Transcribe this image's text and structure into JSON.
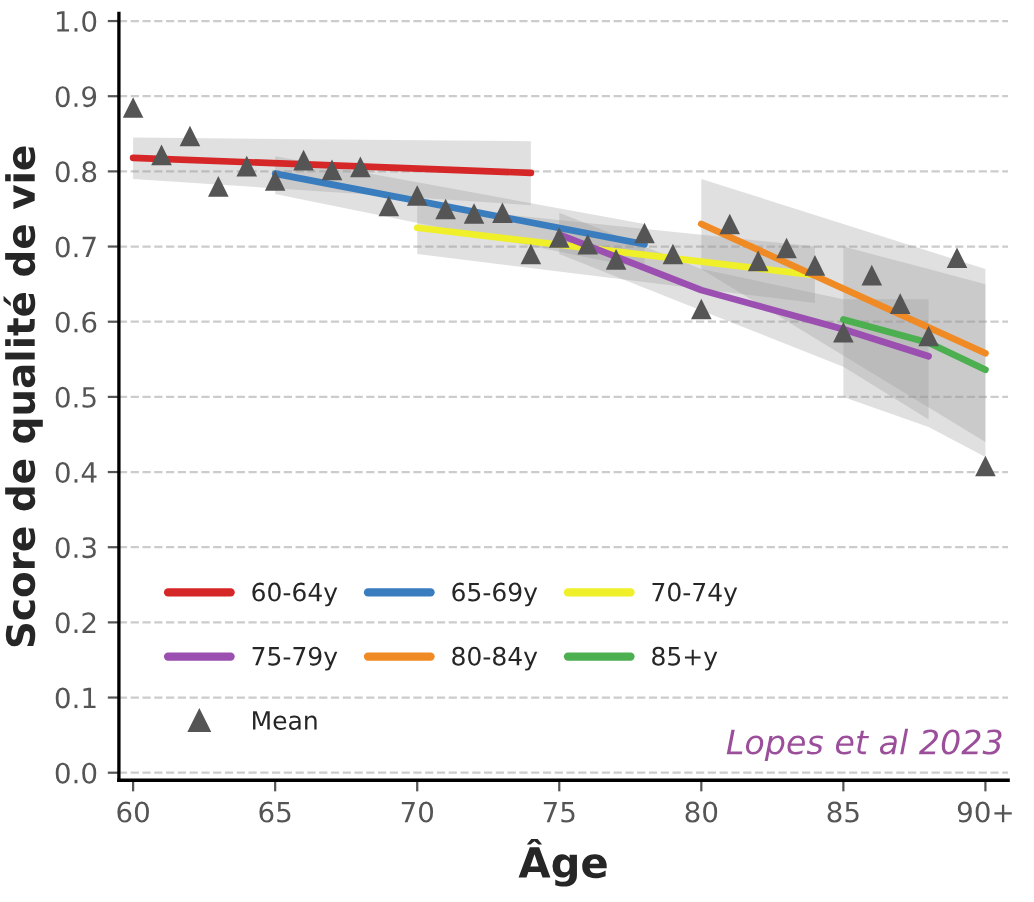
{
  "chart_data": {
    "type": "line",
    "xlabel": "Âge",
    "ylabel": "Score de qualité de vie",
    "xlim": [
      59.5,
      90.8
    ],
    "xticks": [
      60,
      65,
      70,
      75,
      80,
      85,
      {
        "value": 90,
        "label": "90+"
      }
    ],
    "ylim": [
      -0.01,
      1.01
    ],
    "yticks": [
      {
        "value": 0,
        "label": "0.0"
      },
      0.1,
      0.2,
      0.3,
      0.4,
      0.5,
      0.6,
      0.7,
      0.8,
      0.9,
      {
        "value": 1,
        "label": "1.0"
      }
    ],
    "grid": "y",
    "legend": "bottom left",
    "marker": "none",
    "line_style": "solid",
    "annotations": [
      "Lopes et al 2023"
    ],
    "series": [
      {
        "name": "60-64y",
        "color": "#d62728",
        "x": [
          60,
          74
        ],
        "values": [
          0.818,
          0.798
        ],
        "lower": [
          0.79,
          0.755
        ],
        "upper": [
          0.845,
          0.84
        ]
      },
      {
        "name": "65-69y",
        "color": "#3a7dbf",
        "x": [
          65,
          78
        ],
        "values": [
          0.797,
          0.703
        ],
        "lower": [
          0.77,
          0.67
        ],
        "upper": [
          0.82,
          0.73
        ]
      },
      {
        "name": "70-74y",
        "color": "#f0f02a",
        "x": [
          70,
          84
        ],
        "values": [
          0.725,
          0.662
        ],
        "lower": [
          0.69,
          0.625
        ],
        "upper": [
          0.755,
          0.7
        ]
      },
      {
        "name": "75-79y",
        "color": "#9b4fb0",
        "x": [
          75,
          80,
          85,
          88
        ],
        "values": [
          0.716,
          0.642,
          0.59,
          0.554
        ],
        "lower": [
          0.69,
          0.615,
          0.54,
          0.47
        ],
        "upper": [
          0.745,
          0.67,
          0.63,
          0.63
        ]
      },
      {
        "name": "80-84y",
        "color": "#f08a24",
        "x": [
          80,
          90
        ],
        "values": [
          0.73,
          0.558
        ],
        "lower": [
          0.67,
          0.44
        ],
        "upper": [
          0.79,
          0.67
        ]
      },
      {
        "name": "85+y",
        "color": "#4caf50",
        "x": [
          85,
          88,
          90
        ],
        "values": [
          0.603,
          0.572,
          0.536
        ],
        "lower": [
          0.5,
          0.46,
          0.42
        ],
        "upper": [
          0.7,
          0.67,
          0.65
        ]
      },
      {
        "name": "Mean",
        "type": "scatter",
        "marker": "triangle",
        "color": "#555555",
        "x": [
          60,
          61,
          62,
          63,
          64,
          65,
          66,
          67,
          68,
          69,
          70,
          71,
          72,
          73,
          74,
          75,
          76,
          77,
          78,
          79,
          80,
          81,
          82,
          83,
          84,
          85,
          86,
          87,
          88,
          89,
          90
        ],
        "values": [
          0.885,
          0.822,
          0.847,
          0.78,
          0.807,
          0.788,
          0.815,
          0.802,
          0.806,
          0.754,
          0.768,
          0.75,
          0.744,
          0.745,
          0.69,
          0.712,
          0.703,
          0.683,
          0.718,
          0.69,
          0.617,
          0.73,
          0.681,
          0.698,
          0.675,
          0.586,
          0.662,
          0.624,
          0.581,
          0.685,
          0.408
        ]
      }
    ]
  }
}
